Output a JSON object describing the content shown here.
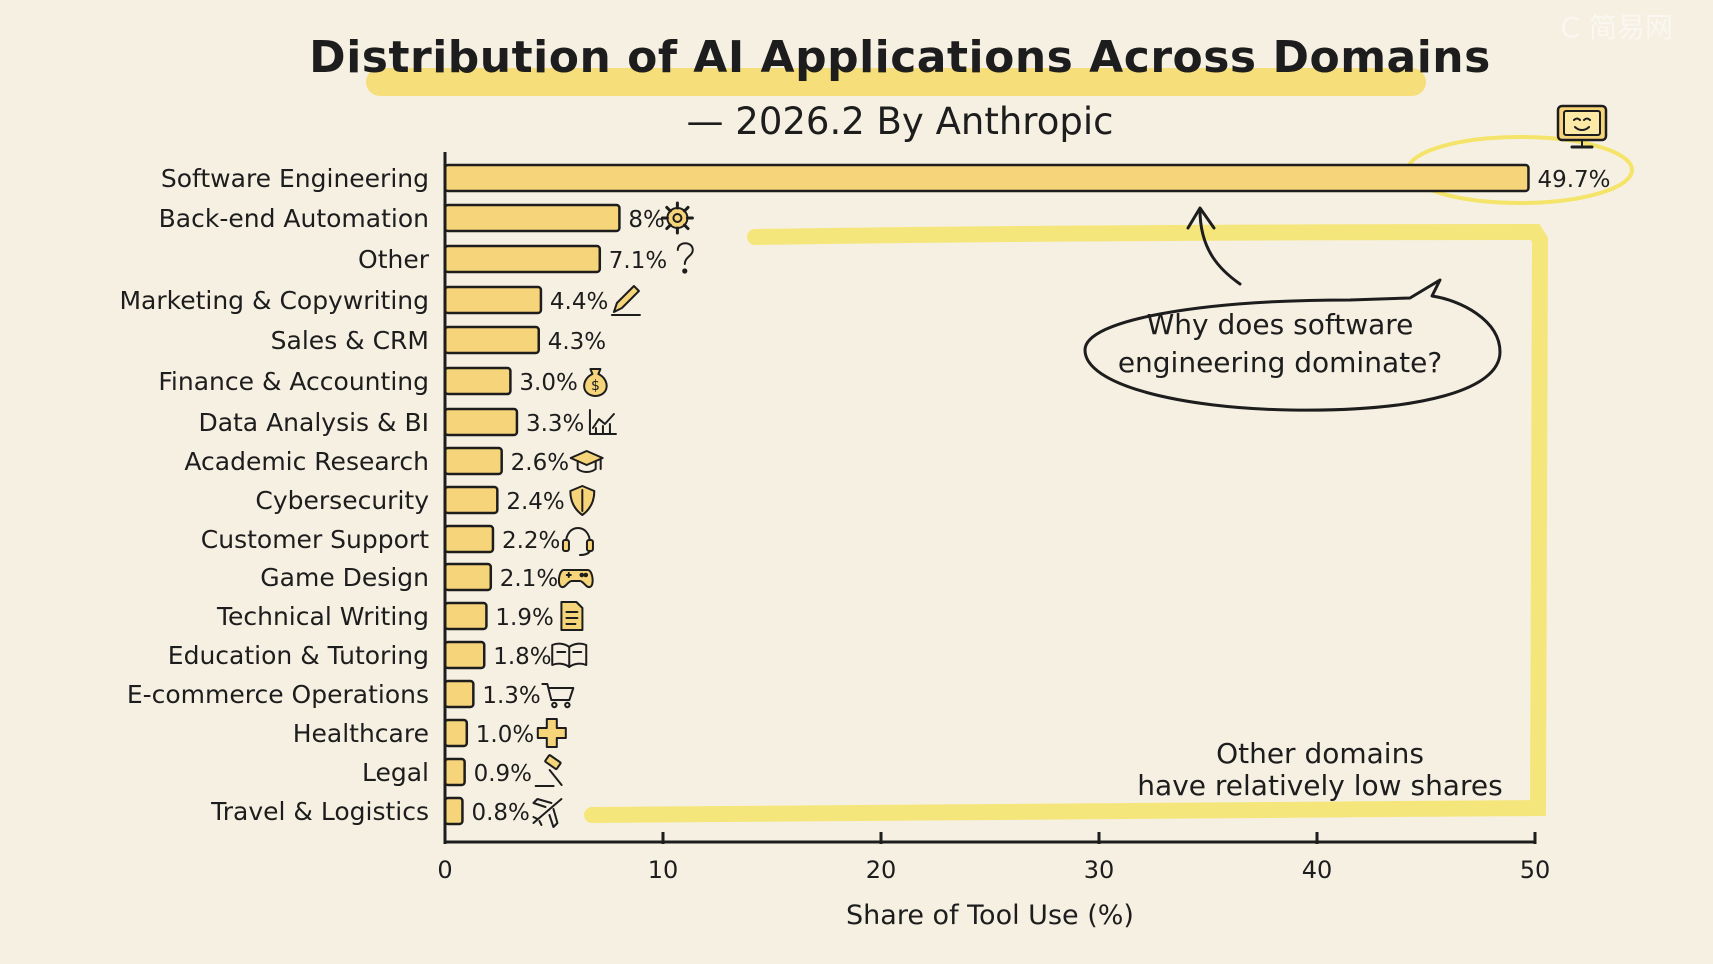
{
  "watermark": "C 简易网",
  "chart_data": {
    "type": "bar",
    "orientation": "horizontal",
    "title": "Distribution of AI Applications Across Domains",
    "subtitle": "— 2026.2 By Anthropic",
    "xlabel": "Share of Tool Use (%)",
    "ylabel": "",
    "xlim": [
      0,
      50
    ],
    "xticks": [
      0,
      10,
      20,
      30,
      40,
      50
    ],
    "grid": false,
    "categories": [
      "Software Engineering",
      "Back-end Automation",
      "Other",
      "Marketing & Copywriting",
      "Sales & CRM",
      "Finance & Accounting",
      "Data Analysis & BI",
      "Academic Research",
      "Cybersecurity",
      "Customer Support",
      "Game Design",
      "Technical Writing",
      "Education & Tutoring",
      "E-commerce Operations",
      "Healthcare",
      "Legal",
      "Travel & Logistics"
    ],
    "values": [
      49.7,
      8,
      7.1,
      4.4,
      4.3,
      3.0,
      3.3,
      2.6,
      2.4,
      2.2,
      2.1,
      1.9,
      1.8,
      1.3,
      1.0,
      0.9,
      0.8
    ],
    "data_labels": [
      "49.7%",
      "8%",
      "7.1%",
      "4.4%",
      "4.3%",
      "3.0%",
      "3.3%",
      "2.6%",
      "2.4%",
      "2.2%",
      "2.1%",
      "1.9%",
      "1.8%",
      "1.3%",
      "1.0%",
      "0.9%",
      "0.8%"
    ],
    "icons": [
      "monitor-icon",
      "gear-icon",
      "question-icon",
      "pencil-icon",
      "",
      "money-bag-icon",
      "chart-icon",
      "graduation-cap-icon",
      "shield-icon",
      "headset-icon",
      "gamepad-icon",
      "document-icon",
      "book-icon",
      "cart-icon",
      "medical-cross-icon",
      "gavel-icon",
      "airplane-icon"
    ],
    "colors": {
      "bar": "#f6d57a",
      "bar_outline": "#1d1d1d",
      "highlight": "#f4e46a",
      "background": "#f6f0e3"
    },
    "annotations": [
      {
        "text_lines": [
          "Why does software",
          "engineering dominate?"
        ],
        "style": "speech-bubble"
      },
      {
        "text_lines": [
          "Other domains",
          "have relatively low shares"
        ],
        "style": "highlight-bracket"
      }
    ]
  }
}
